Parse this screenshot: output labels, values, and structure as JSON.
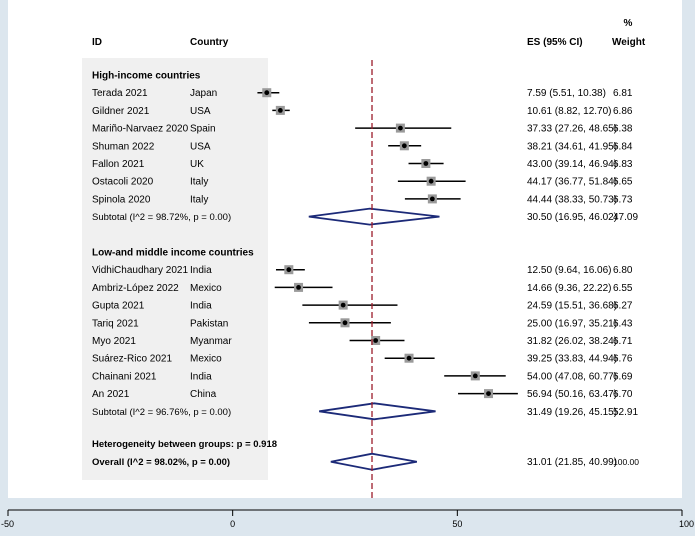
{
  "chart_data": {
    "type": "forest",
    "headers": {
      "id": "ID",
      "country": "Country",
      "es": "ES (95% CI)",
      "weight_pct": "%",
      "weight": "Weight"
    },
    "x_axis": {
      "min": -50,
      "max": 100,
      "ticks": [
        -50,
        0,
        50,
        100
      ]
    },
    "reference_line": 31.01,
    "groups": [
      {
        "name": "High-income countries",
        "studies": [
          {
            "id": "Terada 2021",
            "country": "Japan",
            "es": 7.59,
            "lo": 5.51,
            "hi": 10.38,
            "es_text": "7.59 (5.51, 10.38)",
            "weight": "6.81"
          },
          {
            "id": "Gildner 2021",
            "country": "USA",
            "es": 10.61,
            "lo": 8.82,
            "hi": 12.7,
            "es_text": "10.61 (8.82, 12.70)",
            "weight": "6.86"
          },
          {
            "id": "Mariño-Narvaez 2020",
            "country": "Spain",
            "es": 37.33,
            "lo": 27.26,
            "hi": 48.65,
            "es_text": "37.33 (27.26, 48.65)",
            "weight": "6.38"
          },
          {
            "id": "Shuman 2022",
            "country": "USA",
            "es": 38.21,
            "lo": 34.61,
            "hi": 41.95,
            "es_text": "38.21 (34.61, 41.95)",
            "weight": "6.84"
          },
          {
            "id": "Fallon 2021",
            "country": "UK",
            "es": 43.0,
            "lo": 39.14,
            "hi": 46.94,
            "es_text": "43.00 (39.14, 46.94)",
            "weight": "6.83"
          },
          {
            "id": "Ostacoli 2020",
            "country": "Italy",
            "es": 44.17,
            "lo": 36.77,
            "hi": 51.84,
            "es_text": "44.17 (36.77, 51.84)",
            "weight": "6.65"
          },
          {
            "id": "Spinola 2020",
            "country": "Italy",
            "es": 44.44,
            "lo": 38.33,
            "hi": 50.73,
            "es_text": "44.44 (38.33, 50.73)",
            "weight": "6.73"
          }
        ],
        "subtotal": {
          "label": "Subtotal  (I^2 = 98.72%, p = 0.00)",
          "es": 30.5,
          "lo": 16.95,
          "hi": 46.02,
          "es_text": "30.50 (16.95, 46.02)",
          "weight": "47.09"
        }
      },
      {
        "name": "Low-and middle income countries",
        "studies": [
          {
            "id": "VidhiChaudhary 2021",
            "country": "India",
            "es": 12.5,
            "lo": 9.64,
            "hi": 16.06,
            "es_text": "12.50 (9.64, 16.06)",
            "weight": "6.80"
          },
          {
            "id": "Ambriz-López 2022",
            "country": "Mexico",
            "es": 14.66,
            "lo": 9.36,
            "hi": 22.22,
            "es_text": "14.66 (9.36, 22.22)",
            "weight": "6.55"
          },
          {
            "id": "Gupta 2021",
            "country": "India",
            "es": 24.59,
            "lo": 15.51,
            "hi": 36.68,
            "es_text": "24.59 (15.51, 36.68)",
            "weight": "6.27"
          },
          {
            "id": "Tariq 2021",
            "country": "Pakistan",
            "es": 25.0,
            "lo": 16.97,
            "hi": 35.21,
            "es_text": "25.00 (16.97, 35.21)",
            "weight": "6.43"
          },
          {
            "id": "Myo 2021",
            "country": "Myanmar",
            "es": 31.82,
            "lo": 26.02,
            "hi": 38.24,
            "es_text": "31.82 (26.02, 38.24)",
            "weight": "6.71"
          },
          {
            "id": "Suárez-Rico 2021",
            "country": "Mexico",
            "es": 39.25,
            "lo": 33.83,
            "hi": 44.94,
            "es_text": "39.25 (33.83, 44.94)",
            "weight": "6.76"
          },
          {
            "id": "Chainani 2021",
            "country": "India",
            "es": 54.0,
            "lo": 47.08,
            "hi": 60.77,
            "es_text": "54.00 (47.08, 60.77)",
            "weight": "6.69"
          },
          {
            "id": "An 2021",
            "country": "China",
            "es": 56.94,
            "lo": 50.16,
            "hi": 63.47,
            "es_text": "56.94 (50.16, 63.47)",
            "weight": "6.70"
          }
        ],
        "subtotal": {
          "label": "Subtotal  (I^2 = 96.76%, p = 0.00)",
          "es": 31.49,
          "lo": 19.26,
          "hi": 45.15,
          "es_text": "31.49 (19.26, 45.15)",
          "weight": "52.91"
        }
      }
    ],
    "heterogeneity_text": "Heterogeneity between groups: p = 0.918",
    "overall": {
      "label": "Overall  (I^2 = 98.02%, p = 0.00)",
      "es": 31.01,
      "lo": 21.85,
      "hi": 40.99,
      "es_text": "31.01 (21.85, 40.99)",
      "weight": "100.00"
    }
  }
}
